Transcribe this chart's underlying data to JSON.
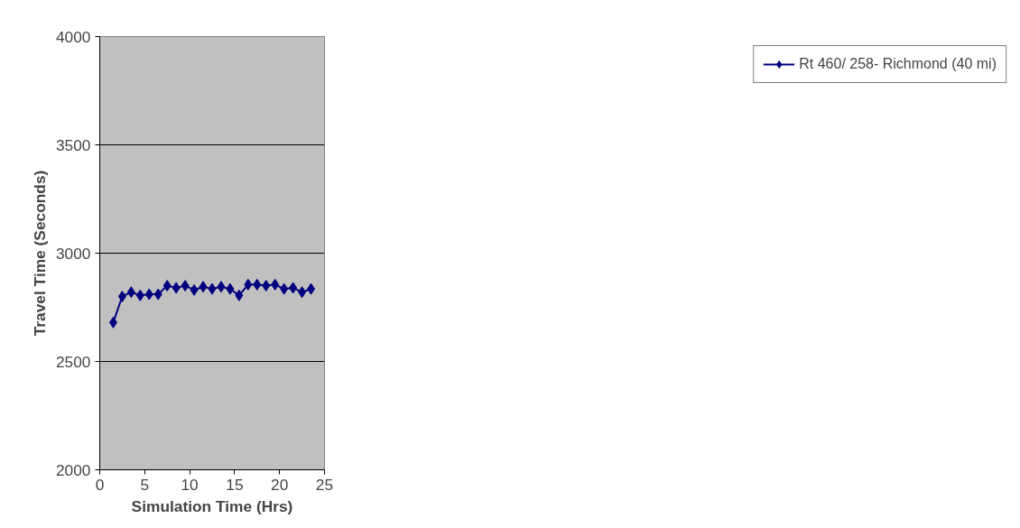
{
  "chart_data": {
    "type": "line",
    "xlabel": "Simulation Time (Hrs)",
    "ylabel": "Travel Time (Seconds)",
    "x": [
      1.5,
      2.5,
      3.5,
      4.5,
      5.5,
      6.5,
      7.5,
      8.5,
      9.5,
      10.5,
      11.5,
      12.5,
      13.5,
      14.5,
      15.5,
      16.5,
      17.5,
      18.5,
      19.5,
      20.5,
      21.5,
      22.5,
      23.5
    ],
    "series": [
      {
        "name": "Rt 460/ 258- Richmond (40 mi)",
        "color": "#000080",
        "values": [
          2680,
          2800,
          2820,
          2805,
          2810,
          2810,
          2850,
          2840,
          2850,
          2830,
          2845,
          2835,
          2845,
          2835,
          2805,
          2855,
          2855,
          2850,
          2855,
          2835,
          2840,
          2820,
          2835
        ]
      }
    ],
    "xlim": [
      0,
      25
    ],
    "xticks": [
      0,
      5,
      10,
      15,
      20,
      25
    ],
    "ylim": [
      2000,
      4000
    ],
    "yticks": [
      2000,
      2500,
      3000,
      3500,
      4000
    ],
    "grid": "y",
    "legend": "right",
    "marker": "diamond",
    "line_style": "solid"
  }
}
